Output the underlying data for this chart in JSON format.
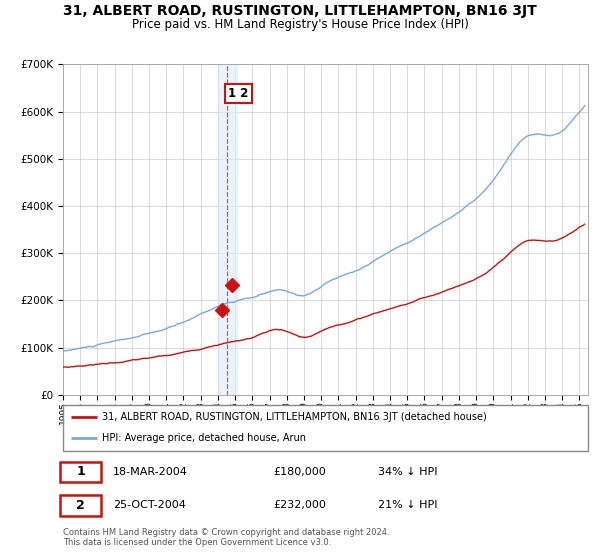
{
  "title": "31, ALBERT ROAD, RUSTINGTON, LITTLEHAMPTON, BN16 3JT",
  "subtitle": "Price paid vs. HM Land Registry's House Price Index (HPI)",
  "title_fontsize": 10,
  "subtitle_fontsize": 8.5,
  "bg_color": "#ffffff",
  "plot_bg_color": "#ffffff",
  "grid_color": "#cccccc",
  "hpi_color": "#7aaadd",
  "price_color": "#cc1111",
  "vline_color": "#dd3333",
  "vline_shade": "#ddeeff",
  "marker1_date": 2004.21,
  "marker1_price": 180000,
  "marker2_date": 2004.82,
  "marker2_price": 232000,
  "legend_label_red": "31, ALBERT ROAD, RUSTINGTON, LITTLEHAMPTON, BN16 3JT (detached house)",
  "legend_label_blue": "HPI: Average price, detached house, Arun",
  "table_row1": [
    "1",
    "18-MAR-2004",
    "£180,000",
    "34% ↓ HPI"
  ],
  "table_row2": [
    "2",
    "25-OCT-2004",
    "£232,000",
    "21% ↓ HPI"
  ],
  "footnote": "Contains HM Land Registry data © Crown copyright and database right 2024.\nThis data is licensed under the Open Government Licence v3.0.",
  "ylim": [
    0,
    700000
  ],
  "yticks": [
    0,
    100000,
    200000,
    300000,
    400000,
    500000,
    600000,
    700000
  ]
}
